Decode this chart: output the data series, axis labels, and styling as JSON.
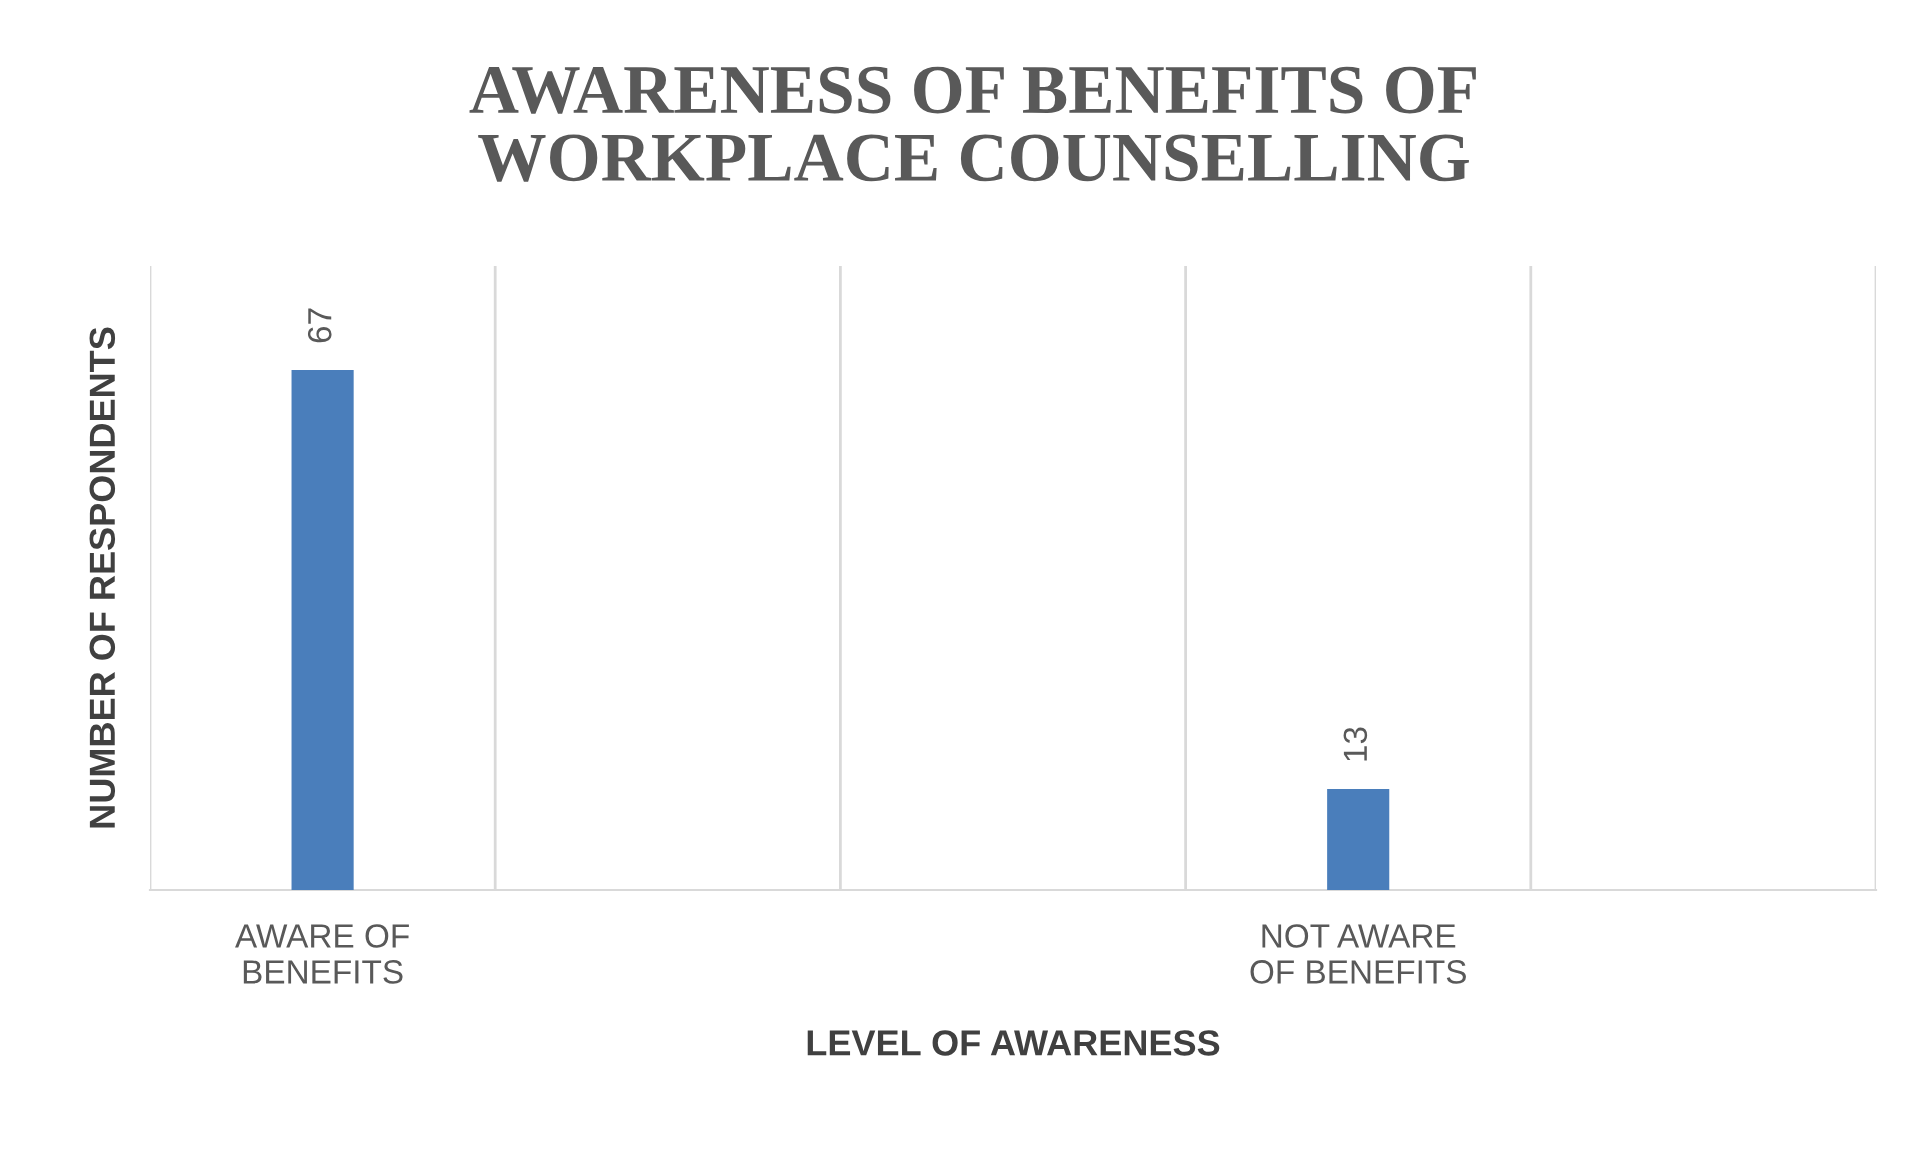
{
  "chart_data": {
    "type": "bar",
    "title": "AWARENESS OF BENEFITS OF\nWORKPLACE COUNSELLING",
    "xlabel": "LEVEL OF AWARENESS",
    "ylabel": "NUMBER OF RESPONDENTS",
    "categories": [
      "AWARE OF\nBENEFITS",
      null,
      null,
      "NOT AWARE\nOF BENEFITS",
      null
    ],
    "values": [
      67,
      null,
      null,
      13,
      null
    ],
    "color": "#4a7ebb",
    "data_labels": true,
    "grid": "x"
  }
}
